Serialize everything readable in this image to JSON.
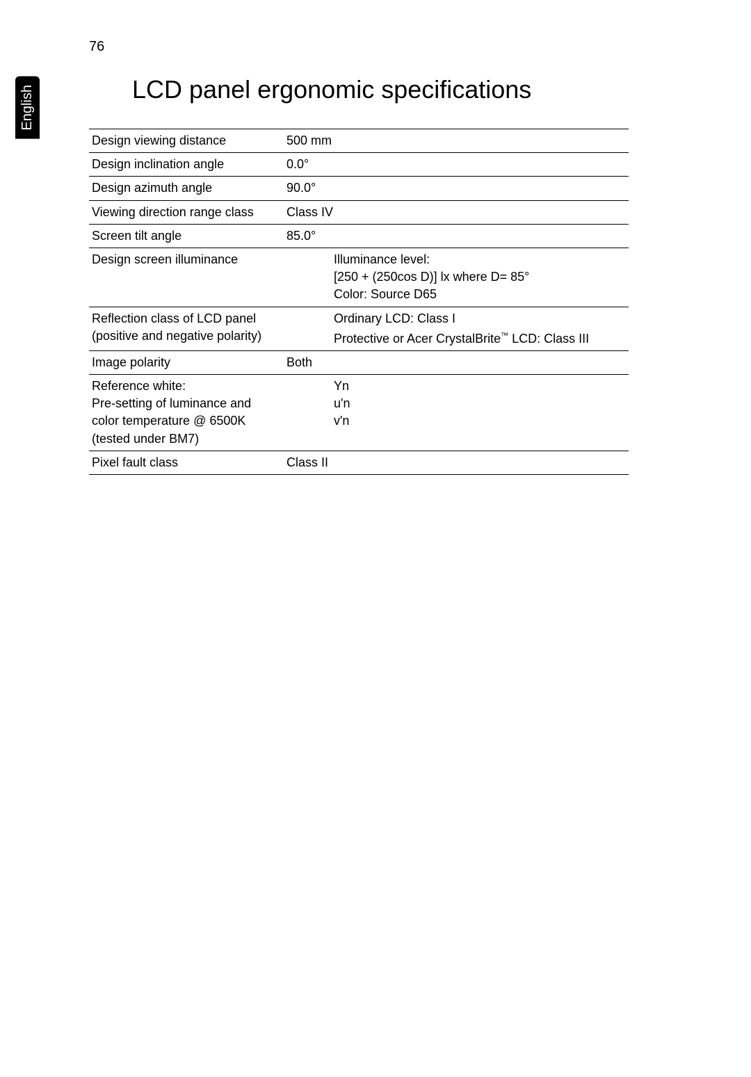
{
  "page": {
    "language_tab": "English",
    "page_number": "76",
    "title": "LCD panel ergonomic specifications"
  },
  "colors": {
    "background": "#ffffff",
    "text": "#000000",
    "tab_bg": "#000000",
    "tab_text": "#ffffff",
    "border": "#000000"
  },
  "table": {
    "type": "table",
    "rows": [
      {
        "label": "Design viewing distance",
        "value": "500 mm"
      },
      {
        "label": "Design inclination angle",
        "value": "0.0°"
      },
      {
        "label": "Design azimuth angle",
        "value": "90.0°"
      },
      {
        "label": "Viewing direction range class",
        "value": "Class IV"
      },
      {
        "label": "Screen tilt angle",
        "value": "85.0°"
      },
      {
        "label": "Design screen illuminance",
        "value_lines": [
          "Illuminance level:",
          "[250 + (250cos D)] lx where  D= 85°",
          "Color: Source D65"
        ],
        "indent": true
      },
      {
        "label_lines": [
          "Reflection class of LCD panel",
          "(positive and negative polarity)"
        ],
        "value_lines": [
          "Ordinary LCD: Class I",
          "",
          "Protective or Acer CrystalBrite™ LCD: Class III"
        ],
        "indent": true,
        "has_tm": true
      },
      {
        "label": "Image polarity",
        "value": "Both"
      },
      {
        "label_lines": [
          "Reference white:",
          "Pre-setting of luminance and",
          "color temperature @ 6500K",
          "(tested under BM7)"
        ],
        "value_lines": [
          "Yn",
          "u'n",
          "v'n"
        ],
        "indent": true
      },
      {
        "label": "Pixel fault class",
        "value": "Class II"
      }
    ]
  },
  "typography": {
    "title_fontsize": 36,
    "body_fontsize": 18,
    "pagenum_fontsize": 20,
    "tab_fontsize": 20
  }
}
